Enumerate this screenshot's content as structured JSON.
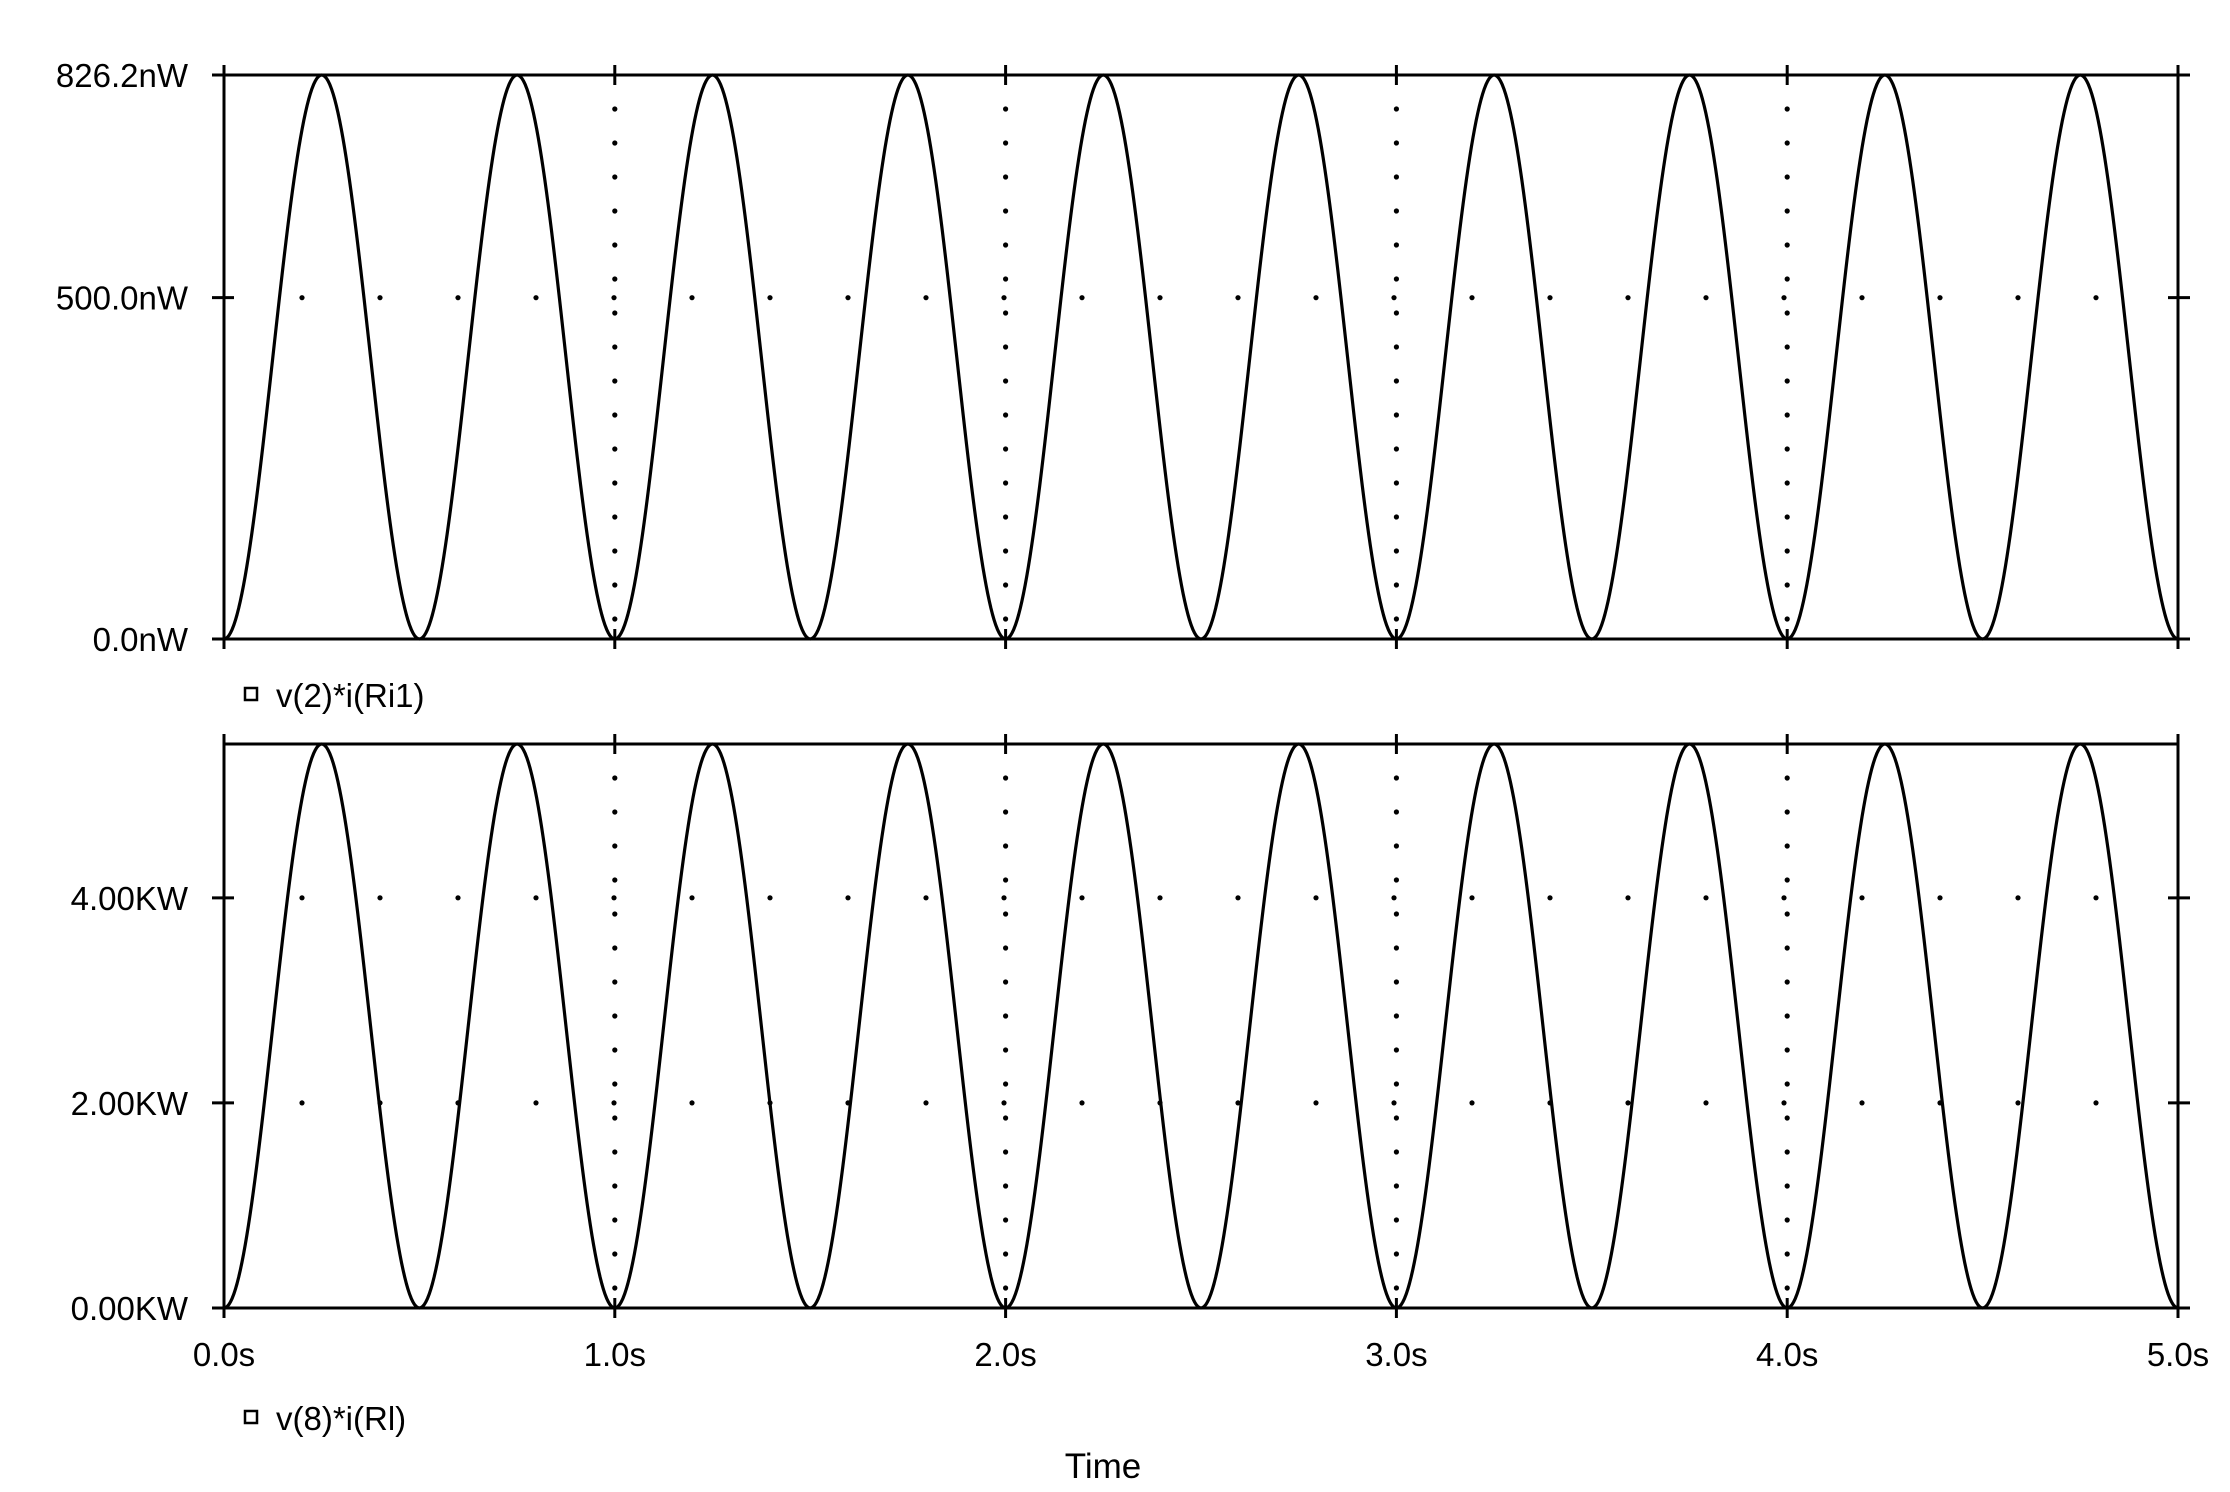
{
  "chart_data": [
    {
      "type": "line",
      "series": [
        {
          "name": "v(2)*i(Ri1)",
          "color": "#000000",
          "model": "peak * sin^2(pi * t / 0.5)",
          "peak": 826.2,
          "period_s": 0.5,
          "x": [
            0.0,
            0.125,
            0.25,
            0.375,
            0.5,
            0.625,
            0.75,
            0.875,
            1.0
          ],
          "y": [
            0.0,
            413.1,
            826.2,
            413.1,
            0.0,
            413.1,
            826.2,
            413.1,
            0.0
          ]
        }
      ],
      "xlim": [
        0.0,
        5.0
      ],
      "ylim": [
        0.0,
        826.2
      ],
      "y_unit": "nW",
      "y_ticks": [
        {
          "value": 0.0,
          "label": "0.0nW"
        },
        {
          "value": 500.0,
          "label": "500.0nW"
        },
        {
          "value": 826.2,
          "label": "826.2nW"
        }
      ],
      "legend": "bottom-left",
      "grid": "dotted"
    },
    {
      "type": "line",
      "series": [
        {
          "name": "v(8)*i(Rl)",
          "color": "#000000",
          "model": "peak * sin^2(pi * t / 0.5)",
          "peak": 5.5,
          "period_s": 0.5,
          "x": [
            0.0,
            0.125,
            0.25,
            0.375,
            0.5,
            0.625,
            0.75,
            0.875,
            1.0
          ],
          "y": [
            0.0,
            2.75,
            5.5,
            2.75,
            0.0,
            2.75,
            5.5,
            2.75,
            0.0
          ]
        }
      ],
      "xlim": [
        0.0,
        5.0
      ],
      "ylim": [
        0.0,
        5.5
      ],
      "y_unit": "KW",
      "y_ticks": [
        {
          "value": 0.0,
          "label": "0.00KW"
        },
        {
          "value": 2.0,
          "label": "2.00KW"
        },
        {
          "value": 4.0,
          "label": "4.00KW"
        }
      ],
      "x_ticks": [
        {
          "value": 0.0,
          "label": "0.0s"
        },
        {
          "value": 1.0,
          "label": "1.0s"
        },
        {
          "value": 2.0,
          "label": "2.0s"
        },
        {
          "value": 3.0,
          "label": "3.0s"
        },
        {
          "value": 4.0,
          "label": "4.0s"
        },
        {
          "value": 5.0,
          "label": "5.0s"
        }
      ],
      "xlabel": "Time",
      "legend": "bottom-left",
      "grid": "dotted"
    }
  ]
}
